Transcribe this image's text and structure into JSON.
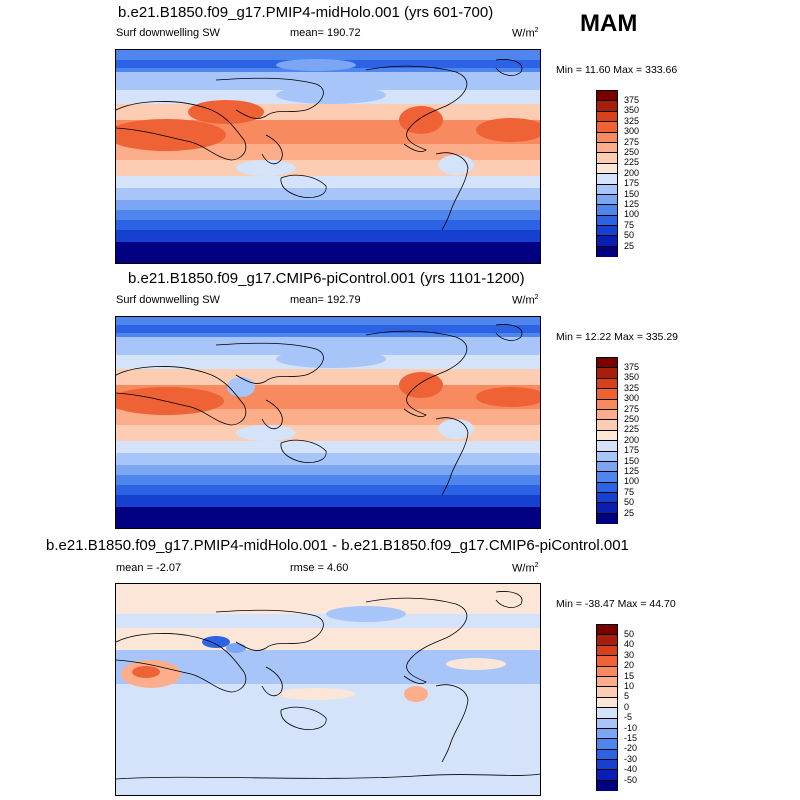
{
  "season": "MAM",
  "unit": "W/m",
  "unit_sup": "2",
  "panels": [
    {
      "title": "b.e21.B1850.f09_g17.PMIP4-midHolo.001 (yrs 601-700)",
      "left_label": "Surf downwelling SW",
      "mean": "mean= 190.72",
      "minmax": "Min =  11.60 Max = 333.66"
    },
    {
      "title": "b.e21.B1850.f09_g17.CMIP6-piControl.001 (yrs 1101-1200)",
      "left_label": "Surf downwelling SW",
      "mean": "mean= 192.79",
      "minmax": "Min =  12.22 Max = 335.29"
    },
    {
      "title": "b.e21.B1850.f09_g17.PMIP4-midHolo.001 - b.e21.B1850.f09_g17.CMIP6-piControl.001",
      "left_label": "mean =  -2.07",
      "mean": "rmse =   4.60",
      "minmax": "Min = -38.47 Max =  44.70"
    }
  ],
  "chart_data": [
    {
      "type": "heatmap",
      "title": "b.e21.B1850.f09_g17.PMIP4-midHolo.001 (yrs 601-700)",
      "variable": "Surf downwelling SW",
      "mean": 190.72,
      "min": 11.6,
      "max": 333.66,
      "colorbar_levels": [
        25,
        50,
        75,
        100,
        125,
        150,
        175,
        200,
        225,
        250,
        275,
        300,
        325,
        350,
        375
      ]
    },
    {
      "type": "heatmap",
      "title": "b.e21.B1850.f09_g17.CMIP6-piControl.001 (yrs 1101-1200)",
      "variable": "Surf downwelling SW",
      "mean": 192.79,
      "min": 12.22,
      "max": 335.29,
      "colorbar_levels": [
        25,
        50,
        75,
        100,
        125,
        150,
        175,
        200,
        225,
        250,
        275,
        300,
        325,
        350,
        375
      ]
    },
    {
      "type": "heatmap",
      "title": "b.e21.B1850.f09_g17.PMIP4-midHolo.001 - b.e21.B1850.f09_g17.CMIP6-piControl.001",
      "mean": -2.07,
      "rmse": 4.6,
      "min": -38.47,
      "max": 44.7,
      "colorbar_levels": [
        -50,
        -40,
        -30,
        -20,
        -15,
        -10,
        -5,
        0,
        5,
        10,
        15,
        20,
        30,
        40,
        50
      ]
    }
  ],
  "colors": {
    "bar": [
      "#000080",
      "#0b1eb4",
      "#1640d0",
      "#2c62e4",
      "#4f86ee",
      "#7aa6f4",
      "#a7c5f8",
      "#d4e2fa",
      "#fbe6d8",
      "#fccdb2",
      "#fcae8a",
      "#f88a60",
      "#ef6236",
      "#d6401a",
      "#a81e0c",
      "#7a0000"
    ]
  }
}
